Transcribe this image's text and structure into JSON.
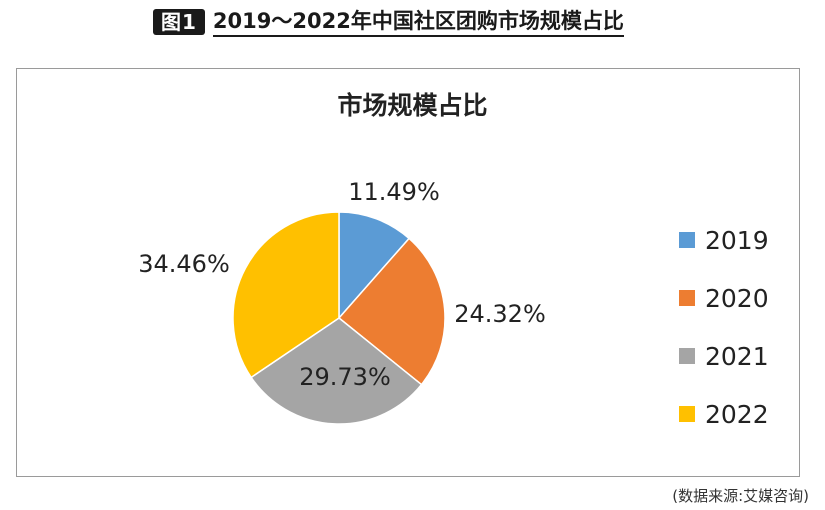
{
  "header": {
    "badge": "图1",
    "title": "2019～2022年中国社区团购市场规模占比"
  },
  "source": "(数据来源:艾媒咨询)",
  "chart_data": {
    "type": "pie",
    "title": "市场规模占比",
    "categories": [
      "2019",
      "2020",
      "2021",
      "2022"
    ],
    "values": [
      11.49,
      24.32,
      29.73,
      34.46
    ],
    "labels": [
      "11.49%",
      "24.32%",
      "29.73%",
      "34.46%"
    ],
    "colors": [
      "#5B9BD5",
      "#ED7D31",
      "#A5A5A5",
      "#FFC000"
    ],
    "legend": "right"
  }
}
